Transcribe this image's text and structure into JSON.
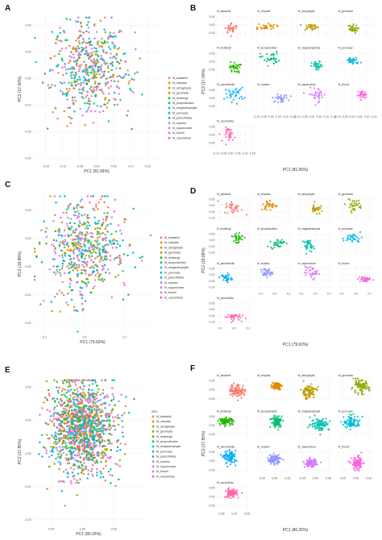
{
  "colors": [
    "#F8766D",
    "#E18A00",
    "#BE9C00",
    "#8CAB00",
    "#24B700",
    "#00BE70",
    "#00C1AB",
    "#00BBDA",
    "#00ACFC",
    "#8B93FF",
    "#D575FE",
    "#F962DD",
    "#FF65AC"
  ],
  "chart_data": [
    {
      "panel": "A",
      "type": "scatter",
      "facet": false,
      "xlabel": "PC1 (81.06%)",
      "ylabel": "PC2 (17.00%)",
      "xlim": [
        -0.19,
        0.19
      ],
      "ylim": [
        -0.21,
        0.07
      ],
      "xticks": [
        -0.15,
        -0.1,
        -0.05,
        0.0,
        0.05,
        0.1,
        0.15
      ],
      "xtick_labels": [
        "-0.15",
        "-0.10",
        "-0.05",
        "0.00",
        "0.05",
        "0.10",
        "0.15"
      ],
      "yticks": [
        0.05,
        0.0,
        -0.05,
        -0.1,
        -0.15,
        -0.2
      ],
      "ytick_labels": [
        "0.05",
        "0.00",
        "-0.05",
        "-0.10",
        "-0.15",
        "-0.20"
      ],
      "legend": {
        "title": "",
        "position": "right",
        "entries": [
          "M_baldwinii",
          "M_crispata",
          "M_dichypbylla",
          "M_geminata",
          "M_lindbergii",
          "M_lycopodioides",
          "M_megasteuphylla",
          "M_pervoase",
          "M_parociriliolia",
          "M_replans",
          "M_squamulose",
          "M_thurnii",
          "M_vaccinifolia"
        ]
      },
      "n_points": 520,
      "cx": -0.02,
      "cy": -0.03,
      "sx": 0.055,
      "sy": 0.045
    },
    {
      "panel": "B",
      "type": "scatter",
      "facet": true,
      "xlabel": "PC1 (81.06%)",
      "ylabel": "PC2 (17.00%)",
      "xlim": [
        -0.1,
        0.15
      ],
      "ylim": [
        -0.1,
        0.07
      ],
      "xticks": [
        -0.1,
        -0.05,
        0.0,
        0.05,
        0.1,
        0.15
      ],
      "xtick_labels": [
        "-0.10",
        "-0.05",
        "0.00",
        "0.05",
        "0.10",
        "0.15"
      ],
      "yticks": [
        0.05,
        0.0,
        -0.05
      ],
      "ytick_labels": [
        "0.05",
        "0.00",
        "-0.05"
      ],
      "facets": [
        "M_baldwinii",
        "M_crispata",
        "M_dichypbylla",
        "M_geminata",
        "M_lindbergii",
        "M_lycopodioides",
        "M_megasteuphylla",
        "M_pervoase",
        "M_parociriliolia",
        "M_replans",
        "M_squamulose",
        "M_thurnii",
        "M_vaccinifolia"
      ],
      "n_points": 32
    },
    {
      "panel": "C",
      "type": "scatter",
      "facet": false,
      "xlabel": "PC1 (79.63%)",
      "ylabel": "PC2 (18.88%)",
      "xlim": [
        -0.13,
        0.17
      ],
      "ylim": [
        -0.17,
        0.08
      ],
      "xticks": [
        -0.1,
        0.0,
        0.1
      ],
      "xtick_labels": [
        "-0.1",
        "0.0",
        "0.1"
      ],
      "yticks": [
        0.05,
        0.0,
        -0.05,
        -0.1,
        -0.15
      ],
      "ytick_labels": [
        "0.05",
        "0.00",
        "-0.05",
        "-0.10",
        "-0.15"
      ],
      "legend": {
        "title": "",
        "position": "right",
        "entries": [
          "M_baldwinii",
          "M_crispata",
          "M_dichypbylla",
          "M_geminata",
          "M_lindbergii",
          "M_lycopodioides",
          "M_megasteuphylla",
          "M_pervoase",
          "M_parociriliolia",
          "M_replans",
          "M_squamulose",
          "M_thurnii",
          "M_vaccinifolia"
        ]
      },
      "n_points": 560,
      "cx": 0.0,
      "cy": -0.02,
      "sx": 0.05,
      "sy": 0.045
    },
    {
      "panel": "D",
      "type": "scatter",
      "facet": true,
      "xlabel": "PC1 (79.63%)",
      "ylabel": "PC2 (18.88%)",
      "xlim": [
        -0.13,
        0.13
      ],
      "ylim": [
        -0.13,
        0.07
      ],
      "xticks": [
        -0.1,
        0.0,
        0.1
      ],
      "xtick_labels": [
        "-0.1",
        "0.0",
        "0.1"
      ],
      "yticks": [
        0.05,
        0.0,
        -0.05,
        -0.1
      ],
      "ytick_labels": [
        "0.05",
        "0.00",
        "-0.05",
        "-0.10"
      ],
      "facets": [
        "M_baldwinii",
        "M_crispata",
        "M_dichypbylla",
        "M_geminata",
        "M_lindbergii",
        "M_lycopodioides",
        "M_megasteuphylla",
        "M_pervoase",
        "M_parociriliolia",
        "M_replans",
        "M_squamulose",
        "M_thurnii",
        "M_vaccinifolia"
      ],
      "n_points": 32
    },
    {
      "panel": "E",
      "type": "scatter",
      "facet": false,
      "xlabel": "PC1 (80.26%)",
      "ylabel": "PC2 (17.85%)",
      "xlim": [
        -0.08,
        0.1
      ],
      "ylim": [
        -0.16,
        0.065
      ],
      "xticks": [
        -0.05,
        0.0,
        0.05
      ],
      "xtick_labels": [
        "-0.05",
        "0.00",
        "0.05"
      ],
      "yticks": [
        0.05,
        0.0,
        -0.05,
        -0.1,
        -0.15
      ],
      "ytick_labels": [
        "0.05",
        "0.00",
        "-0.05",
        "-0.10",
        "-0.15"
      ],
      "legend": {
        "title": "SP1",
        "position": "right",
        "entries": [
          "M_baldwinii",
          "M_crispata",
          "M_dichypbylla",
          "M_geminata",
          "M_lindbergii",
          "M_lycopodioides",
          "M_megasteuphylla",
          "M_pervoase",
          "M_parociriliolia",
          "M_replans",
          "M_squamulose",
          "M_thurnii",
          "M_vaccinifolia"
        ]
      },
      "n_points": 1300,
      "cx": 0.0,
      "cy": -0.01,
      "sx": 0.025,
      "sy": 0.035
    },
    {
      "panel": "F",
      "type": "scatter",
      "facet": true,
      "xlabel": "PC1 (80.26%)",
      "ylabel": "PC2 (17.85%)",
      "xlim": [
        -0.07,
        0.07
      ],
      "ylim": [
        -0.08,
        0.065
      ],
      "xticks": [
        -0.05,
        0.0,
        0.05
      ],
      "xtick_labels": [
        "-0.05",
        "0.00",
        "0.05"
      ],
      "yticks": [
        0.05,
        0.0,
        -0.05
      ],
      "ytick_labels": [
        "0.05",
        "0.00",
        "-0.05"
      ],
      "facets": [
        "M_baldwinii",
        "M_crispata",
        "M_dichypbylla",
        "M_geminata",
        "M_lindbergii",
        "M_lycopodioides",
        "M_megasteuphylla",
        "M_pervoase",
        "M_parociriliolia",
        "M_replans",
        "M_squamulose",
        "M_thurnii",
        "M_vaccinifolia"
      ],
      "n_points": 85
    }
  ]
}
